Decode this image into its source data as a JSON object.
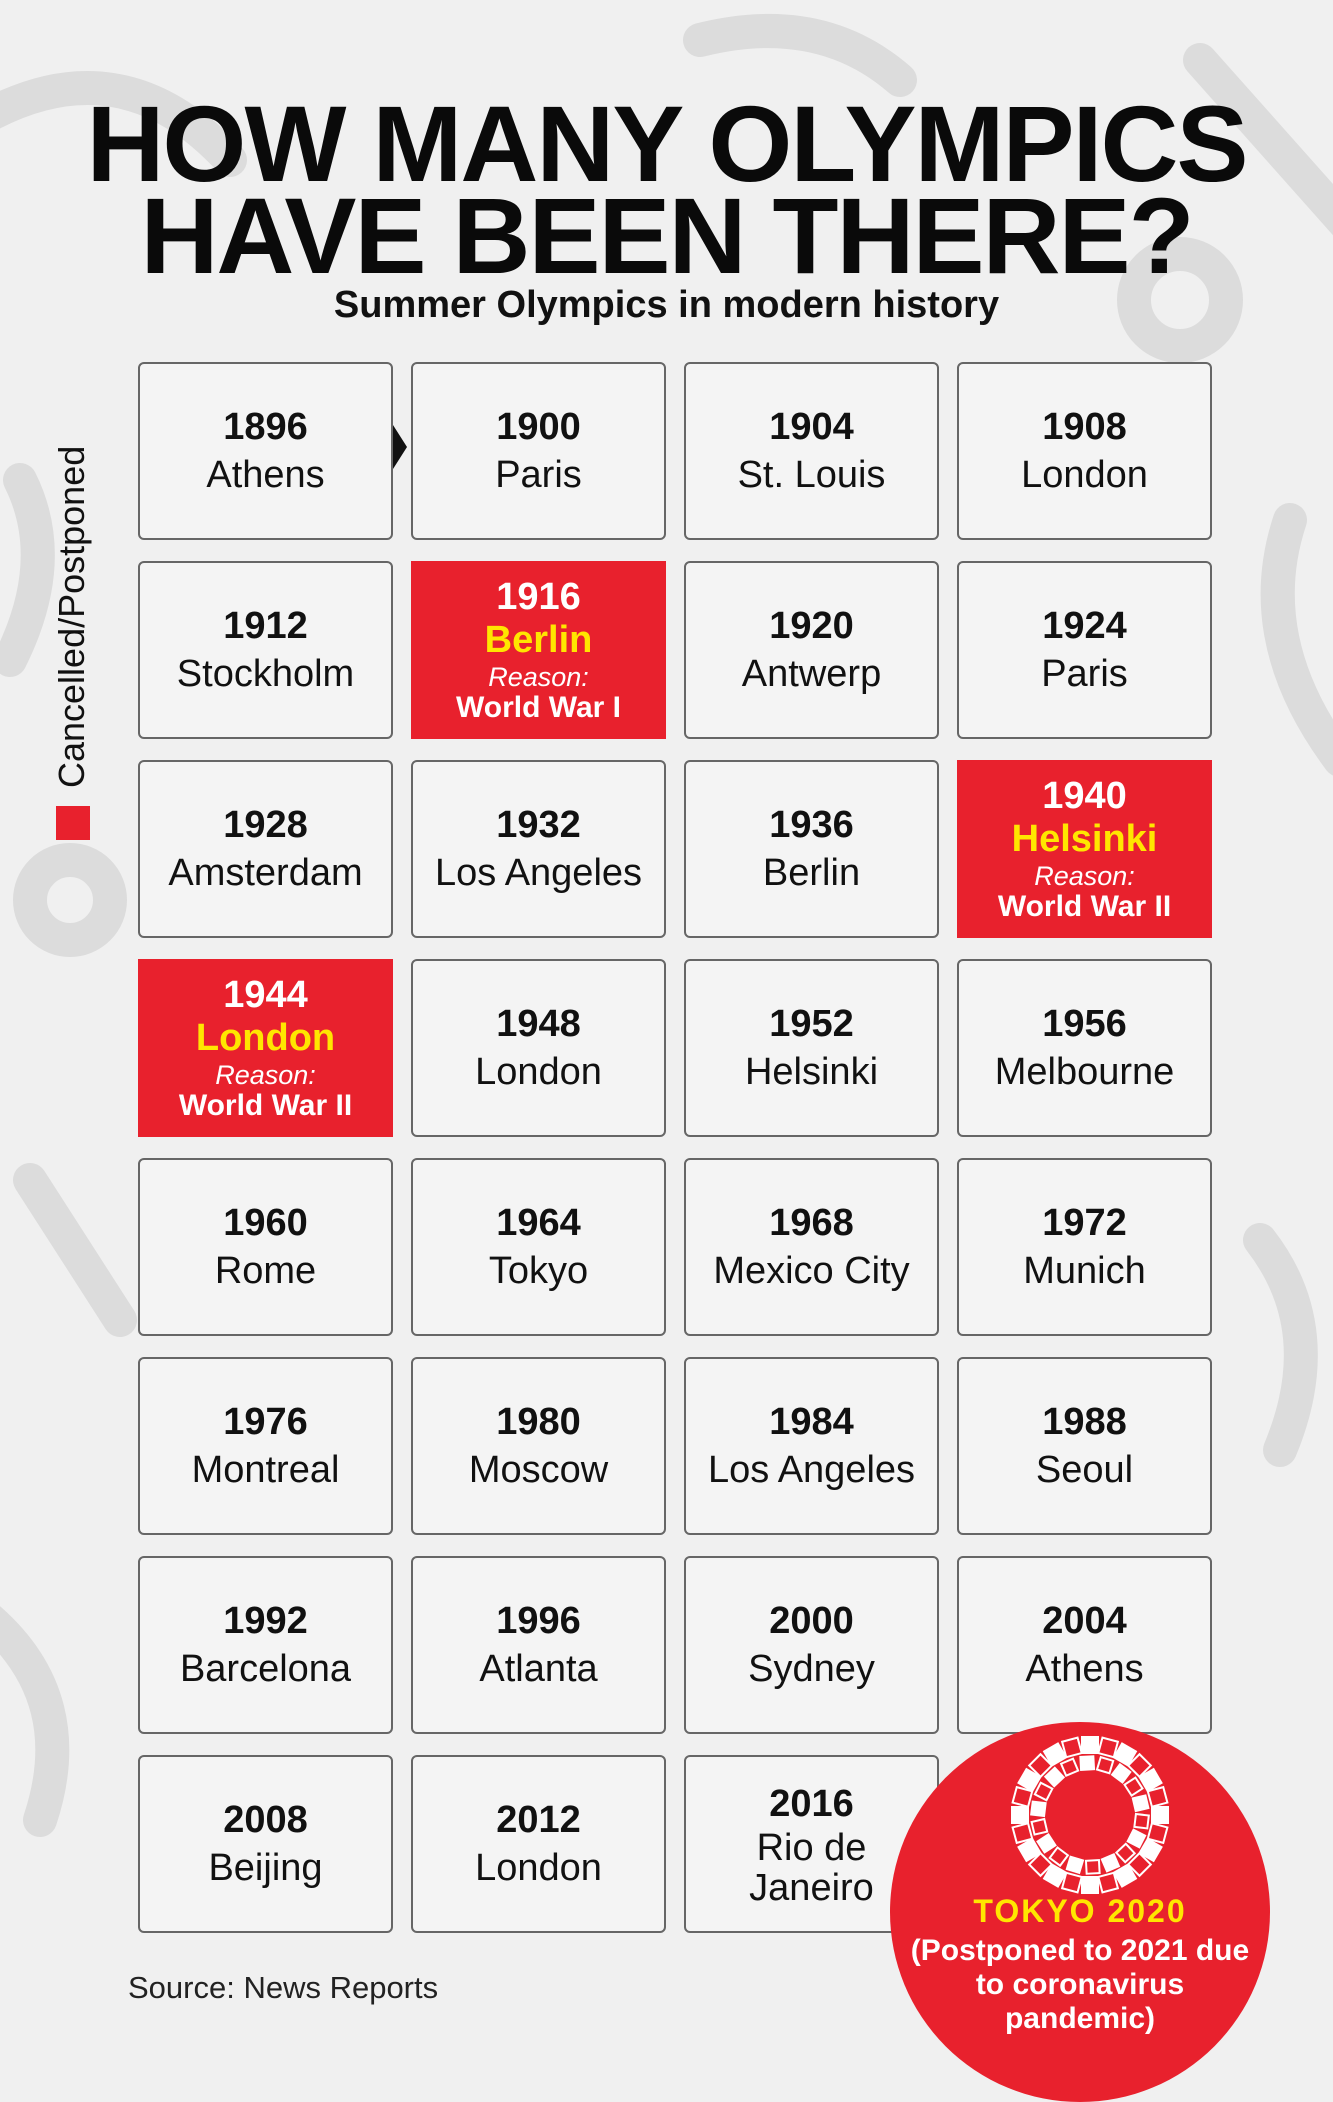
{
  "header": {
    "title_line1": "HOW MANY OLYMPICS",
    "title_line2": "HAVE BEEN THERE?",
    "subtitle": "Summer Olympics in modern history"
  },
  "legend": {
    "label": "Cancelled/Postponed",
    "color": "#e8212d"
  },
  "colors": {
    "cancelled": "#e8212d",
    "highlight_text": "#ffe600",
    "border": "#666666"
  },
  "games": [
    {
      "year": "1896",
      "city": "Athens"
    },
    {
      "year": "1900",
      "city": "Paris"
    },
    {
      "year": "1904",
      "city": "St. Louis"
    },
    {
      "year": "1908",
      "city": "London"
    },
    {
      "year": "1912",
      "city": "Stockholm"
    },
    {
      "year": "1916",
      "city": "Berlin",
      "reason": "Reason:",
      "cause": "World War I"
    },
    {
      "year": "1920",
      "city": "Antwerp"
    },
    {
      "year": "1924",
      "city": "Paris"
    },
    {
      "year": "1928",
      "city": "Amsterdam"
    },
    {
      "year": "1932",
      "city": "Los Angeles"
    },
    {
      "year": "1936",
      "city": "Berlin"
    },
    {
      "year": "1940",
      "city": "Helsinki",
      "reason": "Reason:",
      "cause": "World War II"
    },
    {
      "year": "1944",
      "city": "London",
      "reason": "Reason:",
      "cause": "World War II"
    },
    {
      "year": "1948",
      "city": "London"
    },
    {
      "year": "1952",
      "city": "Helsinki"
    },
    {
      "year": "1956",
      "city": "Melbourne"
    },
    {
      "year": "1960",
      "city": "Rome"
    },
    {
      "year": "1964",
      "city": "Tokyo"
    },
    {
      "year": "1968",
      "city": "Mexico City"
    },
    {
      "year": "1972",
      "city": "Munich"
    },
    {
      "year": "1976",
      "city": "Montreal"
    },
    {
      "year": "1980",
      "city": "Moscow"
    },
    {
      "year": "1984",
      "city": "Los Angeles"
    },
    {
      "year": "1988",
      "city": "Seoul"
    },
    {
      "year": "1992",
      "city": "Barcelona"
    },
    {
      "year": "1996",
      "city": "Atlanta"
    },
    {
      "year": "2000",
      "city": "Sydney"
    },
    {
      "year": "2004",
      "city": "Athens"
    },
    {
      "year": "2008",
      "city": "Beijing"
    },
    {
      "year": "2012",
      "city": "London"
    },
    {
      "year": "2016",
      "city": "Rio de Janeiro"
    }
  ],
  "tokyo": {
    "name": "TOKYO 2020",
    "note": "(Postponed to 2021 due to coronavirus pandemic)",
    "emblem": "tokyo-2020-emblem-icon"
  },
  "source": "Source: News Reports"
}
